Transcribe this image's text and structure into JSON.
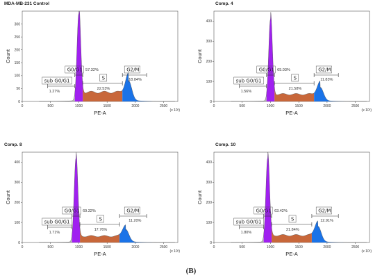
{
  "figure_label": "(B)",
  "colors": {
    "g0g1": "#a020f0",
    "s": "#c8673a",
    "g2m": "#1a73e8",
    "sub": "#8a8a8a"
  },
  "chart_data": [
    {
      "type": "area",
      "title": "MDA-MB-231   Control",
      "xlabel": "PE-A",
      "ylabel": "Count",
      "x_unit": "(x 10³)",
      "xlim": [
        0,
        2750
      ],
      "ylim": [
        0,
        350
      ],
      "xticks": [
        0,
        500,
        1000,
        1500,
        2000,
        2500
      ],
      "yticks": [
        0,
        50,
        100,
        150,
        200,
        250,
        300
      ],
      "g1_peak": {
        "x": 1000,
        "y": 340
      },
      "g2_peak": {
        "x": 1880,
        "y": 75
      },
      "s_level": 40,
      "gates": [
        {
          "label": "sub G0/G1",
          "percent": "1.27%"
        },
        {
          "label": "G0/G1",
          "percent": "57.32%"
        },
        {
          "label": "S",
          "percent": "22.53%"
        },
        {
          "label": "G2/M",
          "percent": "18.84%"
        }
      ]
    },
    {
      "type": "area",
      "title": "Comp. 4",
      "xlabel": "PE-A",
      "ylabel": "Count",
      "x_unit": "(x 10³)",
      "xlim": [
        0,
        2750
      ],
      "ylim": [
        0,
        450
      ],
      "xticks": [
        0,
        500,
        1000,
        1500,
        2000,
        2500
      ],
      "yticks": [
        0,
        100,
        200,
        300,
        400
      ],
      "g1_peak": {
        "x": 1000,
        "y": 410
      },
      "g2_peak": {
        "x": 1880,
        "y": 65
      },
      "s_level": 40,
      "gates": [
        {
          "label": "sub G0/G1",
          "percent": "1.56%"
        },
        {
          "label": "G0/G1",
          "percent": "65.03%"
        },
        {
          "label": "S",
          "percent": "21.58%"
        },
        {
          "label": "G2/M",
          "percent": "11.83%"
        }
      ]
    },
    {
      "type": "area",
      "title": "Comp. 8",
      "xlabel": "PE-A",
      "ylabel": "Count",
      "x_unit": "(x 10³)",
      "xlim": [
        0,
        2750
      ],
      "ylim": [
        0,
        450
      ],
      "xticks": [
        0,
        500,
        1000,
        1500,
        2000,
        2500
      ],
      "yticks": [
        0,
        100,
        200,
        300,
        400
      ],
      "g1_peak": {
        "x": 950,
        "y": 420
      },
      "g2_peak": {
        "x": 1830,
        "y": 60
      },
      "s_level": 35,
      "gates": [
        {
          "label": "sub G0/G1",
          "percent": "1.71%"
        },
        {
          "label": "G0/G1",
          "percent": "69.32%"
        },
        {
          "label": "S",
          "percent": "17.76%"
        },
        {
          "label": "G2/M",
          "percent": "11.20%"
        }
      ]
    },
    {
      "type": "area",
      "title": "Comp. 10",
      "xlabel": "PE-A",
      "ylabel": "Count",
      "x_unit": "(x 10³)",
      "xlim": [
        0,
        2750
      ],
      "ylim": [
        0,
        450
      ],
      "xticks": [
        0,
        500,
        1000,
        1500,
        2000,
        2500
      ],
      "yticks": [
        0,
        100,
        200,
        300,
        400
      ],
      "g1_peak": {
        "x": 950,
        "y": 420
      },
      "g2_peak": {
        "x": 1840,
        "y": 75
      },
      "s_level": 40,
      "gates": [
        {
          "label": "sub G0/G1",
          "percent": "1.80%"
        },
        {
          "label": "G0/G1",
          "percent": "63.42%"
        },
        {
          "label": "S",
          "percent": "21.84%"
        },
        {
          "label": "G2/M",
          "percent": "12.91%"
        }
      ]
    }
  ]
}
